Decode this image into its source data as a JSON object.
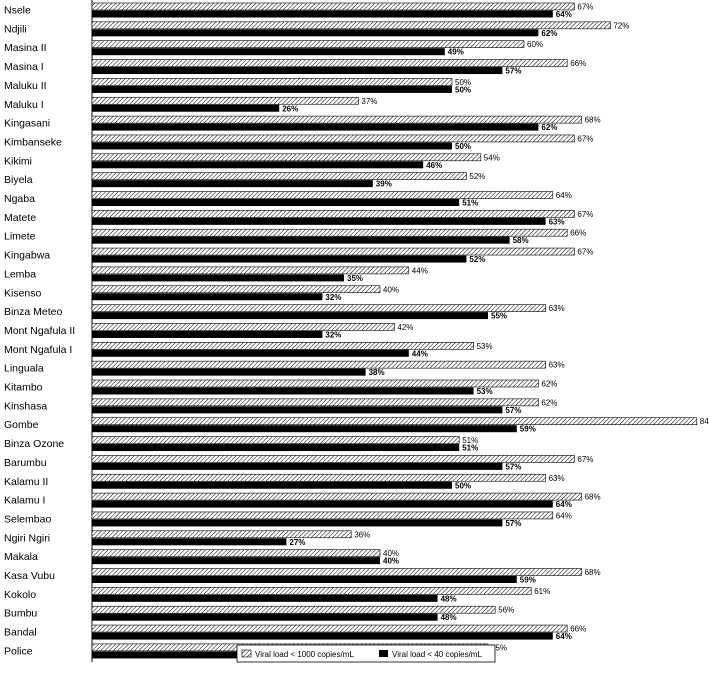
{
  "chart_data": {
    "type": "bar",
    "orientation": "horizontal",
    "categories": [
      "Nsele",
      "Ndjili",
      "Masina II",
      "Masina I",
      "Maluku II",
      "Maluku I",
      "Kingasani",
      "Kimbanseke",
      "Kikimi",
      "Biyela",
      "Ngaba",
      "Matete",
      "Limete",
      "Kingabwa",
      "Lemba",
      "Kisenso",
      "Binza Meteo",
      "Mont Ngafula II",
      "Mont Ngafula I",
      "Linguala",
      "Kitambo",
      "Kinshasa",
      "Gombe",
      "Binza Ozone",
      "Barumbu",
      "Kalamu II",
      "Kalamu I",
      "Selembao",
      "Ngiri Ngiri",
      "Makala",
      "Kasa Vubu",
      "Kokolo",
      "Bumbu",
      "Bandal",
      "Police"
    ],
    "series": [
      {
        "name": "Viral load < 1000 copies/mL",
        "pattern": "hatched",
        "values": [
          67,
          72,
          60,
          66,
          50,
          37,
          68,
          67,
          54,
          52,
          64,
          67,
          66,
          67,
          44,
          40,
          63,
          42,
          53,
          63,
          62,
          62,
          84,
          51,
          67,
          63,
          68,
          64,
          36,
          40,
          68,
          61,
          56,
          66,
          55
        ]
      },
      {
        "name": "Viral load < 40 copies/mL",
        "color": "#000000",
        "values": [
          64,
          62,
          49,
          57,
          50,
          26,
          62,
          50,
          46,
          39,
          51,
          63,
          58,
          52,
          35,
          32,
          55,
          32,
          44,
          38,
          53,
          57,
          59,
          51,
          57,
          50,
          64,
          57,
          27,
          40,
          59,
          48,
          48,
          64,
          42
        ]
      }
    ],
    "value_suffix": "%",
    "xlim": [
      0,
      100
    ],
    "legend_position": "bottom-center",
    "grid": false
  }
}
